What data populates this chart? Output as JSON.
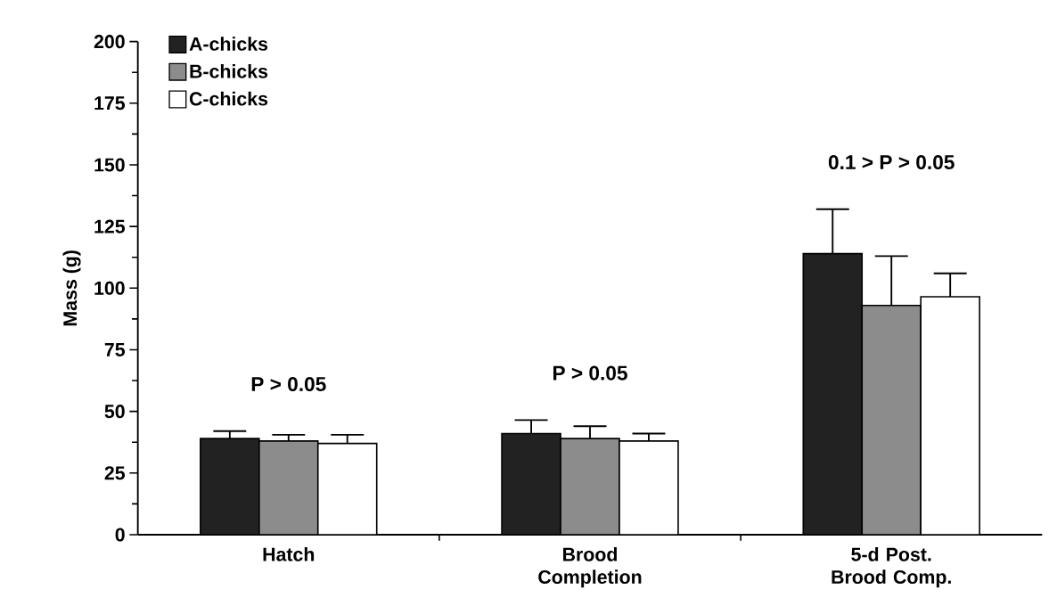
{
  "chart_data": {
    "type": "bar",
    "categories": [
      "Hatch",
      "Brood Completion",
      "5-d Post. Brood Comp."
    ],
    "ylabel": "Mass (g)",
    "ylim": [
      0,
      200
    ],
    "yticks": [
      0,
      25,
      50,
      75,
      100,
      125,
      150,
      175,
      200
    ],
    "series": [
      {
        "name": "A-chicks",
        "color": "#222222",
        "values": [
          39,
          41,
          114
        ],
        "errors": [
          [
            39,
            42
          ],
          [
            41,
            46.5
          ],
          [
            114,
            132
          ]
        ]
      },
      {
        "name": "B-chicks",
        "color": "#8c8c8c",
        "values": [
          38,
          39,
          93
        ],
        "errors": [
          [
            38,
            40.5
          ],
          [
            39,
            44
          ],
          [
            93,
            113
          ]
        ]
      },
      {
        "name": "C-chicks",
        "color": "#ffffff",
        "values": [
          37,
          38,
          96.5
        ],
        "errors": [
          [
            37,
            40.5
          ],
          [
            38,
            41
          ],
          [
            96.5,
            106
          ]
        ]
      }
    ],
    "annotations": [
      "P > 0.05",
      "P > 0.05",
      "0.1 > P > 0.05"
    ],
    "legend": "top left",
    "grid": false
  }
}
